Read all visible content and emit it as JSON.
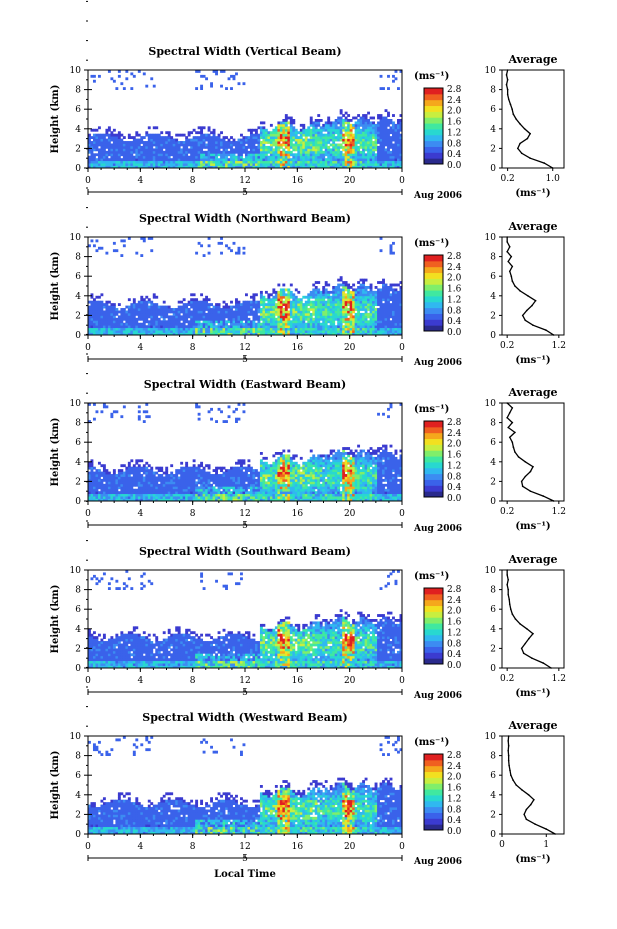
{
  "colorbar": {
    "unit_label": "(ms⁻¹)",
    "ticks": [
      "2.8",
      "2.4",
      "2.0",
      "1.6",
      "1.2",
      "0.8",
      "0.4",
      "0.0"
    ],
    "colors": [
      "#2a2a8c",
      "#3b3bd0",
      "#3a62ea",
      "#3c8cf2",
      "#30b8f0",
      "#28d8d0",
      "#40e8a0",
      "#80ee6a",
      "#c8ee40",
      "#f2e020",
      "#f5a81c",
      "#f06020",
      "#e02020"
    ]
  },
  "date_label": "Aug 2006",
  "xaxis": {
    "label": "Local Time",
    "ticks": [
      "0",
      "4",
      "8",
      "12",
      "16",
      "20",
      "0"
    ],
    "secondary_tick": "5"
  },
  "yaxis": {
    "label": "Height (km)",
    "ticks": [
      "0",
      "2",
      "4",
      "6",
      "8",
      "10"
    ]
  },
  "avg_axis_label": "(ms⁻¹)",
  "chart_data": [
    {
      "type": "heatmap",
      "title": "Spectral Width (Vertical Beam)",
      "x_range": [
        0,
        24
      ],
      "y_range": [
        0,
        10
      ],
      "z_range": [
        0.0,
        2.8
      ],
      "profile": {
        "title": "Average",
        "x_ticks": [
          "0.2",
          "1.0"
        ],
        "x_range": [
          0.1,
          1.2
        ],
        "heights": [
          0,
          0.5,
          1,
          1.5,
          2,
          2.5,
          3,
          3.5,
          4,
          4.5,
          5,
          5.5,
          6,
          6.5,
          7,
          7.5,
          8,
          8.5,
          9,
          9.5,
          10
        ],
        "values": [
          1.0,
          0.85,
          0.6,
          0.45,
          0.38,
          0.42,
          0.55,
          0.6,
          0.5,
          0.42,
          0.35,
          0.3,
          0.28,
          0.25,
          0.22,
          0.2,
          0.2,
          0.18,
          0.2,
          0.18,
          0.2
        ]
      }
    },
    {
      "type": "heatmap",
      "title": "Spectral Width (Northward Beam)",
      "x_range": [
        0,
        24
      ],
      "y_range": [
        0,
        10
      ],
      "z_range": [
        0.0,
        2.8
      ],
      "profile": {
        "title": "Average",
        "x_ticks": [
          "0.2",
          "1.2"
        ],
        "x_range": [
          0.1,
          1.3
        ],
        "heights": [
          0,
          0.5,
          1,
          1.5,
          2,
          2.5,
          3,
          3.5,
          4,
          4.5,
          5,
          5.5,
          6,
          6.5,
          7,
          7.5,
          8,
          8.5,
          9,
          9.5,
          10
        ],
        "values": [
          1.1,
          0.95,
          0.7,
          0.55,
          0.5,
          0.58,
          0.68,
          0.75,
          0.6,
          0.45,
          0.35,
          0.3,
          0.28,
          0.25,
          0.3,
          0.22,
          0.28,
          0.2,
          0.25,
          0.2,
          0.2
        ]
      }
    },
    {
      "type": "heatmap",
      "title": "Spectral Width (Eastward Beam)",
      "x_range": [
        0,
        24
      ],
      "y_range": [
        0,
        10
      ],
      "z_range": [
        0.0,
        2.8
      ],
      "profile": {
        "title": "Average",
        "x_ticks": [
          "0.2",
          "1.2"
        ],
        "x_range": [
          0.1,
          1.3
        ],
        "heights": [
          0,
          0.5,
          1,
          1.5,
          2,
          2.5,
          3,
          3.5,
          4,
          4.5,
          5,
          5.5,
          6,
          6.5,
          7,
          7.5,
          8,
          8.5,
          9,
          9.5,
          10
        ],
        "values": [
          1.1,
          0.9,
          0.65,
          0.5,
          0.48,
          0.55,
          0.65,
          0.7,
          0.55,
          0.42,
          0.35,
          0.32,
          0.3,
          0.25,
          0.35,
          0.22,
          0.3,
          0.2,
          0.25,
          0.3,
          0.2
        ]
      }
    },
    {
      "type": "heatmap",
      "title": "Spectral Width (Southward Beam)",
      "x_range": [
        0,
        24
      ],
      "y_range": [
        0,
        10
      ],
      "z_range": [
        0.0,
        2.8
      ],
      "profile": {
        "title": "Average",
        "x_ticks": [
          "0.2",
          "1.2"
        ],
        "x_range": [
          0.1,
          1.3
        ],
        "heights": [
          0,
          0.5,
          1,
          1.5,
          2,
          2.5,
          3,
          3.5,
          4,
          4.5,
          5,
          5.5,
          6,
          6.5,
          7,
          7.5,
          8,
          8.5,
          9,
          9.5,
          10
        ],
        "values": [
          1.05,
          0.9,
          0.68,
          0.52,
          0.48,
          0.55,
          0.62,
          0.7,
          0.58,
          0.45,
          0.36,
          0.3,
          0.27,
          0.25,
          0.24,
          0.22,
          0.22,
          0.2,
          0.22,
          0.2,
          0.2
        ]
      }
    },
    {
      "type": "heatmap",
      "title": "Spectral Width (Westward Beam)",
      "x_range": [
        0,
        24
      ],
      "y_range": [
        0,
        10
      ],
      "z_range": [
        0.0,
        2.8
      ],
      "profile": {
        "title": "Average",
        "x_ticks": [
          "0",
          "1"
        ],
        "x_range": [
          0,
          1.4
        ],
        "heights": [
          0,
          0.5,
          1,
          1.5,
          2,
          2.5,
          3,
          3.5,
          4,
          4.5,
          5,
          5.5,
          6,
          6.5,
          7,
          7.5,
          8,
          8.5,
          9,
          9.5,
          10
        ],
        "values": [
          1.2,
          1.0,
          0.75,
          0.55,
          0.5,
          0.55,
          0.65,
          0.72,
          0.6,
          0.45,
          0.32,
          0.25,
          0.2,
          0.18,
          0.16,
          0.15,
          0.15,
          0.14,
          0.15,
          0.14,
          0.15
        ]
      }
    }
  ]
}
